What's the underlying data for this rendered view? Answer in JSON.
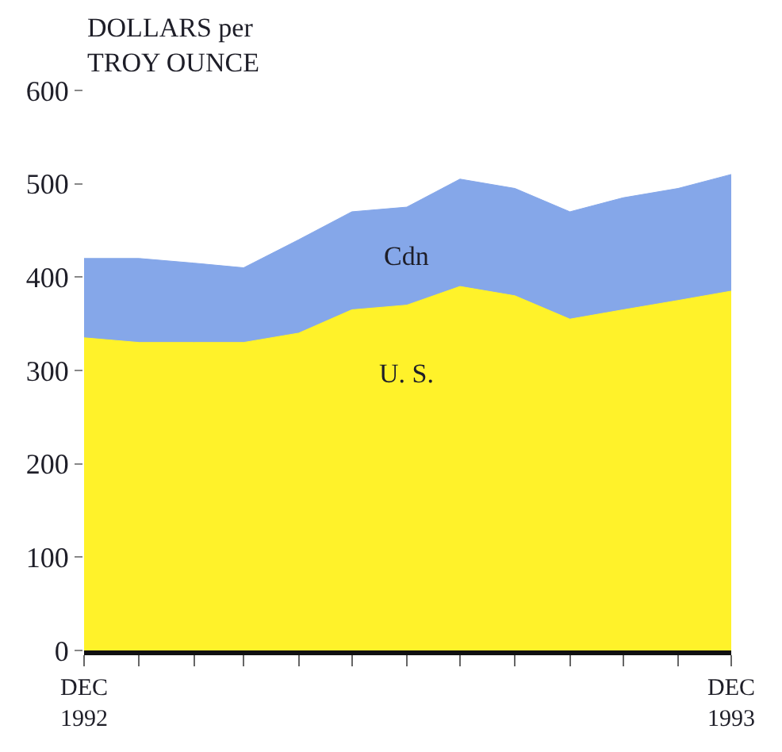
{
  "chart_data": {
    "type": "area",
    "ylabel": "DOLLARS per\nTROY OUNCE",
    "x": [
      "1992-12",
      "1993-01",
      "1993-02",
      "1993-03",
      "1993-04",
      "1993-05",
      "1993-06",
      "1993-07",
      "1993-08",
      "1993-09",
      "1993-10",
      "1993-11",
      "1993-12"
    ],
    "xlim": [
      "1992-12",
      "1993-12"
    ],
    "xticks": [
      {
        "value": "1992-12",
        "label": "DEC\n1992"
      },
      {
        "value": "1993-01",
        "label": null
      },
      {
        "value": "1993-02",
        "label": null
      },
      {
        "value": "1993-03",
        "label": null
      },
      {
        "value": "1993-04",
        "label": null
      },
      {
        "value": "1993-05",
        "label": null
      },
      {
        "value": "1993-06",
        "label": null
      },
      {
        "value": "1993-07",
        "label": null
      },
      {
        "value": "1993-08",
        "label": null
      },
      {
        "value": "1993-09",
        "label": null
      },
      {
        "value": "1993-10",
        "label": null
      },
      {
        "value": "1993-11",
        "label": null
      },
      {
        "value": "1993-12",
        "label": "DEC\n1993"
      }
    ],
    "ylim": [
      0,
      600
    ],
    "yticks": [
      0,
      100,
      200,
      300,
      400,
      500,
      600
    ],
    "series": [
      {
        "name": "Cdn",
        "color": "#85a7e9",
        "values": [
          420,
          420,
          415,
          410,
          440,
          470,
          475,
          505,
          495,
          470,
          485,
          495,
          510
        ]
      },
      {
        "name": "U. S.",
        "color": "#fff22a",
        "values": [
          335,
          330,
          330,
          330,
          340,
          365,
          370,
          390,
          380,
          355,
          365,
          375,
          385
        ]
      }
    ]
  }
}
